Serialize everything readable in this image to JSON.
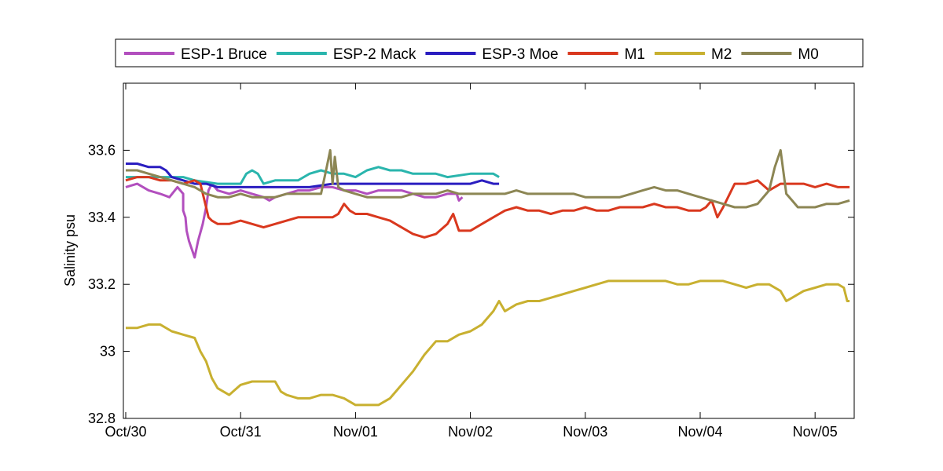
{
  "chart_data": {
    "type": "line",
    "xlabel": "",
    "ylabel": "Salinity psu",
    "x_ticks": [
      "Oct/30",
      "Oct/31",
      "Nov/01",
      "Nov/02",
      "Nov/03",
      "Nov/04",
      "Nov/05"
    ],
    "xlim_days": [
      0,
      6.3
    ],
    "ylim": [
      32.8,
      33.8
    ],
    "y_ticks": [
      32.8,
      33,
      33.2,
      33.4,
      33.6
    ],
    "y_tick_labels": [
      "32.8",
      "33",
      "33.2",
      "33.4",
      "33.6"
    ],
    "legend_position": "top, above plot",
    "grid": false,
    "series": [
      {
        "name": "ESP-1 Bruce",
        "color": "#b24fbe",
        "points": [
          [
            0,
            33.49
          ],
          [
            0.1,
            33.5
          ],
          [
            0.2,
            33.48
          ],
          [
            0.3,
            33.47
          ],
          [
            0.38,
            33.46
          ],
          [
            0.45,
            33.49
          ],
          [
            0.5,
            33.47
          ],
          [
            0.5,
            33.42
          ],
          [
            0.52,
            33.4
          ],
          [
            0.53,
            33.36
          ],
          [
            0.55,
            33.33
          ],
          [
            0.58,
            33.3
          ],
          [
            0.6,
            33.28
          ],
          [
            0.63,
            33.33
          ],
          [
            0.67,
            33.38
          ],
          [
            0.7,
            33.43
          ],
          [
            0.72,
            33.48
          ],
          [
            0.75,
            33.5
          ],
          [
            0.8,
            33.48
          ],
          [
            0.9,
            33.47
          ],
          [
            1.0,
            33.48
          ],
          [
            1.1,
            33.47
          ],
          [
            1.2,
            33.46
          ],
          [
            1.25,
            33.45
          ],
          [
            1.3,
            33.46
          ],
          [
            1.4,
            33.47
          ],
          [
            1.5,
            33.48
          ],
          [
            1.6,
            33.48
          ],
          [
            1.7,
            33.49
          ],
          [
            1.8,
            33.49
          ],
          [
            1.9,
            33.48
          ],
          [
            2.0,
            33.48
          ],
          [
            2.1,
            33.47
          ],
          [
            2.2,
            33.48
          ],
          [
            2.4,
            33.48
          ],
          [
            2.5,
            33.47
          ],
          [
            2.6,
            33.46
          ],
          [
            2.7,
            33.46
          ],
          [
            2.8,
            33.47
          ],
          [
            2.88,
            33.47
          ],
          [
            2.9,
            33.45
          ],
          [
            2.93,
            33.46
          ]
        ]
      },
      {
        "name": "ESP-2 Mack",
        "color": "#2ab5ad",
        "points": [
          [
            0,
            33.52
          ],
          [
            0.2,
            33.52
          ],
          [
            0.4,
            33.52
          ],
          [
            0.5,
            33.52
          ],
          [
            0.6,
            33.51
          ],
          [
            0.8,
            33.5
          ],
          [
            0.9,
            33.5
          ],
          [
            1.0,
            33.5
          ],
          [
            1.05,
            33.53
          ],
          [
            1.1,
            33.54
          ],
          [
            1.15,
            33.53
          ],
          [
            1.2,
            33.5
          ],
          [
            1.3,
            33.51
          ],
          [
            1.4,
            33.51
          ],
          [
            1.5,
            33.51
          ],
          [
            1.6,
            33.53
          ],
          [
            1.7,
            33.54
          ],
          [
            1.8,
            33.53
          ],
          [
            1.9,
            33.53
          ],
          [
            2.0,
            33.52
          ],
          [
            2.1,
            33.54
          ],
          [
            2.2,
            33.55
          ],
          [
            2.3,
            33.54
          ],
          [
            2.4,
            33.54
          ],
          [
            2.5,
            33.53
          ],
          [
            2.6,
            33.53
          ],
          [
            2.7,
            33.53
          ],
          [
            2.8,
            33.52
          ],
          [
            3.0,
            33.53
          ],
          [
            3.1,
            33.53
          ],
          [
            3.2,
            33.53
          ],
          [
            3.25,
            33.52
          ]
        ]
      },
      {
        "name": "ESP-3 Moe",
        "color": "#2a1dc0",
        "points": [
          [
            0,
            33.56
          ],
          [
            0.1,
            33.56
          ],
          [
            0.2,
            33.55
          ],
          [
            0.3,
            33.55
          ],
          [
            0.35,
            33.54
          ],
          [
            0.4,
            33.52
          ],
          [
            0.5,
            33.51
          ],
          [
            0.6,
            33.5
          ],
          [
            0.7,
            33.5
          ],
          [
            0.8,
            33.49
          ],
          [
            1.0,
            33.49
          ],
          [
            1.2,
            33.49
          ],
          [
            1.4,
            33.49
          ],
          [
            1.6,
            33.49
          ],
          [
            1.8,
            33.5
          ],
          [
            2.0,
            33.5
          ],
          [
            2.2,
            33.5
          ],
          [
            2.4,
            33.5
          ],
          [
            2.6,
            33.5
          ],
          [
            2.8,
            33.5
          ],
          [
            2.9,
            33.5
          ],
          [
            3.0,
            33.5
          ],
          [
            3.1,
            33.51
          ],
          [
            3.2,
            33.5
          ],
          [
            3.25,
            33.5
          ]
        ]
      },
      {
        "name": "M1",
        "color": "#d9381e",
        "points": [
          [
            0,
            33.51
          ],
          [
            0.1,
            33.52
          ],
          [
            0.2,
            33.52
          ],
          [
            0.3,
            33.51
          ],
          [
            0.4,
            33.51
          ],
          [
            0.5,
            33.5
          ],
          [
            0.6,
            33.51
          ],
          [
            0.65,
            33.5
          ],
          [
            0.7,
            33.43
          ],
          [
            0.72,
            33.4
          ],
          [
            0.75,
            33.39
          ],
          [
            0.8,
            33.38
          ],
          [
            0.9,
            33.38
          ],
          [
            1.0,
            33.39
          ],
          [
            1.1,
            33.38
          ],
          [
            1.2,
            33.37
          ],
          [
            1.3,
            33.38
          ],
          [
            1.4,
            33.39
          ],
          [
            1.5,
            33.4
          ],
          [
            1.6,
            33.4
          ],
          [
            1.7,
            33.4
          ],
          [
            1.8,
            33.4
          ],
          [
            1.85,
            33.41
          ],
          [
            1.9,
            33.44
          ],
          [
            1.95,
            33.42
          ],
          [
            2.0,
            33.41
          ],
          [
            2.1,
            33.41
          ],
          [
            2.2,
            33.4
          ],
          [
            2.3,
            33.39
          ],
          [
            2.4,
            33.37
          ],
          [
            2.5,
            33.35
          ],
          [
            2.6,
            33.34
          ],
          [
            2.7,
            33.35
          ],
          [
            2.8,
            33.38
          ],
          [
            2.85,
            33.41
          ],
          [
            2.9,
            33.36
          ],
          [
            3.0,
            33.36
          ],
          [
            3.1,
            33.38
          ],
          [
            3.2,
            33.4
          ],
          [
            3.3,
            33.42
          ],
          [
            3.4,
            33.43
          ],
          [
            3.5,
            33.42
          ],
          [
            3.6,
            33.42
          ],
          [
            3.7,
            33.41
          ],
          [
            3.8,
            33.42
          ],
          [
            3.9,
            33.42
          ],
          [
            4.0,
            33.43
          ],
          [
            4.1,
            33.42
          ],
          [
            4.2,
            33.42
          ],
          [
            4.3,
            33.43
          ],
          [
            4.5,
            33.43
          ],
          [
            4.6,
            33.44
          ],
          [
            4.7,
            33.43
          ],
          [
            4.8,
            33.43
          ],
          [
            4.9,
            33.42
          ],
          [
            5.0,
            33.42
          ],
          [
            5.05,
            33.43
          ],
          [
            5.1,
            33.45
          ],
          [
            5.15,
            33.4
          ],
          [
            5.2,
            33.43
          ],
          [
            5.3,
            33.5
          ],
          [
            5.4,
            33.5
          ],
          [
            5.5,
            33.51
          ],
          [
            5.6,
            33.48
          ],
          [
            5.7,
            33.5
          ],
          [
            5.8,
            33.5
          ],
          [
            5.9,
            33.5
          ],
          [
            6.0,
            33.49
          ],
          [
            6.1,
            33.5
          ],
          [
            6.2,
            33.49
          ],
          [
            6.3,
            33.49
          ]
        ]
      },
      {
        "name": "M2",
        "color": "#c8b030",
        "points": [
          [
            0,
            33.07
          ],
          [
            0.1,
            33.07
          ],
          [
            0.2,
            33.08
          ],
          [
            0.3,
            33.08
          ],
          [
            0.4,
            33.06
          ],
          [
            0.5,
            33.05
          ],
          [
            0.6,
            33.04
          ],
          [
            0.65,
            33.0
          ],
          [
            0.7,
            32.97
          ],
          [
            0.75,
            32.92
          ],
          [
            0.8,
            32.89
          ],
          [
            0.9,
            32.87
          ],
          [
            1.0,
            32.9
          ],
          [
            1.1,
            32.91
          ],
          [
            1.2,
            32.91
          ],
          [
            1.3,
            32.91
          ],
          [
            1.35,
            32.88
          ],
          [
            1.4,
            32.87
          ],
          [
            1.5,
            32.86
          ],
          [
            1.6,
            32.86
          ],
          [
            1.7,
            32.87
          ],
          [
            1.8,
            32.87
          ],
          [
            1.9,
            32.86
          ],
          [
            2.0,
            32.84
          ],
          [
            2.1,
            32.84
          ],
          [
            2.2,
            32.84
          ],
          [
            2.3,
            32.86
          ],
          [
            2.4,
            32.9
          ],
          [
            2.5,
            32.94
          ],
          [
            2.6,
            32.99
          ],
          [
            2.7,
            33.03
          ],
          [
            2.8,
            33.03
          ],
          [
            2.9,
            33.05
          ],
          [
            3.0,
            33.06
          ],
          [
            3.1,
            33.08
          ],
          [
            3.2,
            33.12
          ],
          [
            3.25,
            33.15
          ],
          [
            3.3,
            33.12
          ],
          [
            3.4,
            33.14
          ],
          [
            3.5,
            33.15
          ],
          [
            3.6,
            33.15
          ],
          [
            3.7,
            33.16
          ],
          [
            3.8,
            33.17
          ],
          [
            3.9,
            33.18
          ],
          [
            4.0,
            33.19
          ],
          [
            4.1,
            33.2
          ],
          [
            4.2,
            33.21
          ],
          [
            4.3,
            33.21
          ],
          [
            4.5,
            33.21
          ],
          [
            4.6,
            33.21
          ],
          [
            4.7,
            33.21
          ],
          [
            4.8,
            33.2
          ],
          [
            4.9,
            33.2
          ],
          [
            5.0,
            33.21
          ],
          [
            5.1,
            33.21
          ],
          [
            5.2,
            33.21
          ],
          [
            5.3,
            33.2
          ],
          [
            5.4,
            33.19
          ],
          [
            5.5,
            33.2
          ],
          [
            5.6,
            33.2
          ],
          [
            5.7,
            33.18
          ],
          [
            5.75,
            33.15
          ],
          [
            5.8,
            33.16
          ],
          [
            5.9,
            33.18
          ],
          [
            6.0,
            33.19
          ],
          [
            6.1,
            33.2
          ],
          [
            6.2,
            33.2
          ],
          [
            6.25,
            33.19
          ],
          [
            6.28,
            33.15
          ],
          [
            6.3,
            33.15
          ]
        ]
      },
      {
        "name": "M0",
        "color": "#8c8654",
        "points": [
          [
            0,
            33.54
          ],
          [
            0.1,
            33.54
          ],
          [
            0.2,
            33.53
          ],
          [
            0.3,
            33.52
          ],
          [
            0.4,
            33.51
          ],
          [
            0.5,
            33.5
          ],
          [
            0.6,
            33.49
          ],
          [
            0.7,
            33.47
          ],
          [
            0.8,
            33.46
          ],
          [
            0.9,
            33.46
          ],
          [
            1.0,
            33.47
          ],
          [
            1.1,
            33.46
          ],
          [
            1.2,
            33.46
          ],
          [
            1.3,
            33.46
          ],
          [
            1.4,
            33.47
          ],
          [
            1.5,
            33.47
          ],
          [
            1.6,
            33.47
          ],
          [
            1.7,
            33.47
          ],
          [
            1.75,
            33.55
          ],
          [
            1.78,
            33.6
          ],
          [
            1.8,
            33.5
          ],
          [
            1.82,
            33.58
          ],
          [
            1.85,
            33.49
          ],
          [
            1.9,
            33.48
          ],
          [
            2.0,
            33.47
          ],
          [
            2.1,
            33.46
          ],
          [
            2.2,
            33.46
          ],
          [
            2.3,
            33.46
          ],
          [
            2.4,
            33.46
          ],
          [
            2.5,
            33.47
          ],
          [
            2.6,
            33.47
          ],
          [
            2.7,
            33.47
          ],
          [
            2.8,
            33.48
          ],
          [
            2.9,
            33.47
          ],
          [
            3.0,
            33.47
          ],
          [
            3.1,
            33.47
          ],
          [
            3.2,
            33.47
          ],
          [
            3.3,
            33.47
          ],
          [
            3.4,
            33.48
          ],
          [
            3.5,
            33.47
          ],
          [
            3.6,
            33.47
          ],
          [
            3.7,
            33.47
          ],
          [
            3.8,
            33.47
          ],
          [
            3.9,
            33.47
          ],
          [
            4.0,
            33.46
          ],
          [
            4.1,
            33.46
          ],
          [
            4.2,
            33.46
          ],
          [
            4.3,
            33.46
          ],
          [
            4.4,
            33.47
          ],
          [
            4.5,
            33.48
          ],
          [
            4.6,
            33.49
          ],
          [
            4.7,
            33.48
          ],
          [
            4.8,
            33.48
          ],
          [
            4.9,
            33.47
          ],
          [
            5.0,
            33.46
          ],
          [
            5.1,
            33.45
          ],
          [
            5.2,
            33.44
          ],
          [
            5.3,
            33.43
          ],
          [
            5.4,
            33.43
          ],
          [
            5.5,
            33.44
          ],
          [
            5.6,
            33.48
          ],
          [
            5.65,
            33.55
          ],
          [
            5.7,
            33.6
          ],
          [
            5.75,
            33.47
          ],
          [
            5.8,
            33.45
          ],
          [
            5.85,
            33.43
          ],
          [
            5.9,
            33.43
          ],
          [
            6.0,
            33.43
          ],
          [
            6.1,
            33.44
          ],
          [
            6.2,
            33.44
          ],
          [
            6.3,
            33.45
          ]
        ]
      }
    ]
  }
}
